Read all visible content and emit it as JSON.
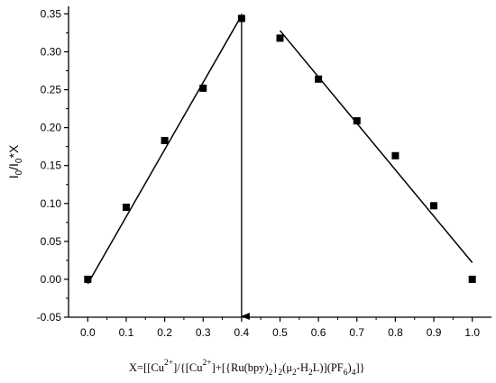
{
  "chart_data": {
    "type": "scatter",
    "ylabel": "I0/I0*X",
    "ylabel_parts": {
      "main": "I",
      "sub1": "0",
      "mid": "/I",
      "sub2": "0",
      "tail": "*X"
    },
    "xlabel": "X=[[Cu2+]/{[Cu2+]+[{Ru(bpy)2}2(μ2-H2L)](PF6)4]}",
    "xlabel_parts": [
      {
        "t": "X=[[Cu",
        "s": "n"
      },
      {
        "t": "2+",
        "s": "sup"
      },
      {
        "t": "]/{[Cu",
        "s": "n"
      },
      {
        "t": "2+",
        "s": "sup"
      },
      {
        "t": "]+[{Ru(bpy)",
        "s": "n"
      },
      {
        "t": "2",
        "s": "sub"
      },
      {
        "t": "}",
        "s": "n"
      },
      {
        "t": "2",
        "s": "sub"
      },
      {
        "t": "(μ",
        "s": "n"
      },
      {
        "t": "2",
        "s": "sub"
      },
      {
        "t": "-H",
        "s": "n"
      },
      {
        "t": "2",
        "s": "sub"
      },
      {
        "t": "L)](PF",
        "s": "n"
      },
      {
        "t": "6",
        "s": "sub"
      },
      {
        "t": ")",
        "s": "n"
      },
      {
        "t": "4",
        "s": "sub"
      },
      {
        "t": "]}",
        "s": "n"
      }
    ],
    "xlim": [
      -0.05,
      1.05
    ],
    "ylim": [
      -0.05,
      0.36
    ],
    "x_ticks": [
      "0.0",
      "0.1",
      "0.2",
      "0.3",
      "0.4",
      "0.5",
      "0.6",
      "0.7",
      "0.8",
      "0.9",
      "1.0"
    ],
    "y_ticks": [
      "-0.05",
      "0.00",
      "0.05",
      "0.10",
      "0.15",
      "0.20",
      "0.25",
      "0.30",
      "0.35"
    ],
    "series": [
      {
        "marker": "square",
        "color": "#000000",
        "points": [
          {
            "x": 0.0,
            "y": 0.0
          },
          {
            "x": 0.1,
            "y": 0.095
          },
          {
            "x": 0.2,
            "y": 0.183
          },
          {
            "x": 0.3,
            "y": 0.252
          },
          {
            "x": 0.4,
            "y": 0.344
          },
          {
            "x": 0.5,
            "y": 0.318
          },
          {
            "x": 0.6,
            "y": 0.264
          },
          {
            "x": 0.7,
            "y": 0.209
          },
          {
            "x": 0.8,
            "y": 0.163
          },
          {
            "x": 0.9,
            "y": 0.097
          },
          {
            "x": 1.0,
            "y": 0.0
          }
        ]
      }
    ],
    "fit_lines": [
      {
        "x": [
          0.0,
          0.4
        ],
        "y": [
          -0.006,
          0.348
        ]
      },
      {
        "x": [
          0.5,
          1.0
        ],
        "y": [
          0.328,
          0.022
        ]
      }
    ],
    "annotations": [
      {
        "type": "arrow",
        "x": 0.4,
        "y_from": 0.35,
        "y_to": -0.05
      }
    ],
    "grid": false,
    "legend": "none"
  }
}
